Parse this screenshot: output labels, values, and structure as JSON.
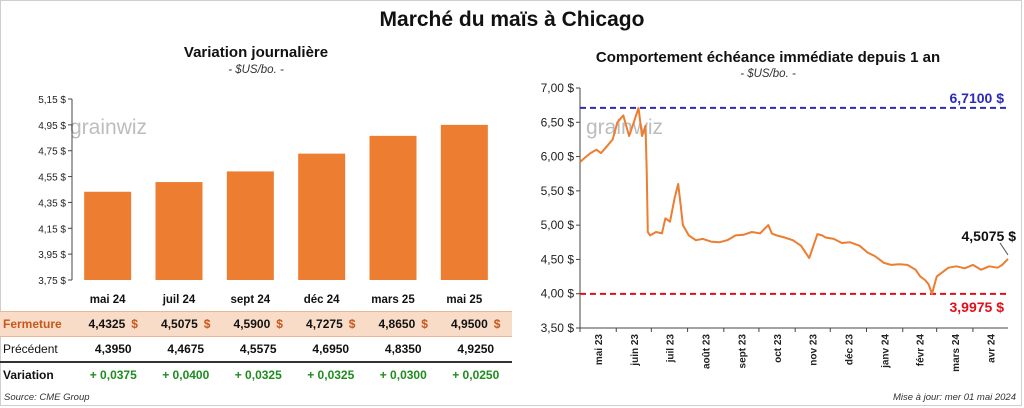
{
  "title": "Marché du maïs à Chicago",
  "watermark": "grainwiz",
  "source": "Source: CME Group",
  "updated": "Mise à jour: mer 01 mai 2024",
  "colors": {
    "bar": "#ed7d31",
    "line": "#ed7d31",
    "high": "#2b2bb8",
    "low": "#e0101a",
    "gain": "#1e8c1e",
    "closeRow": "#f9dcc8"
  },
  "table": {
    "row_labels": [
      "Fermeture",
      "Précédent",
      "Variation"
    ],
    "close": [
      "4,4325",
      "4,5075",
      "4,5900",
      "4,7275",
      "4,8650",
      "4,9500"
    ],
    "currency": "$",
    "previous": [
      "4,3950",
      "4,4675",
      "4,5575",
      "4,6950",
      "4,8350",
      "4,9250"
    ],
    "change": [
      "+ 0,0375",
      "+ 0,0400",
      "+ 0,0325",
      "+ 0,0325",
      "+ 0,0300",
      "+ 0,0250"
    ]
  },
  "chart_data": [
    {
      "type": "bar",
      "title": "Variation journalière",
      "subtitle": "- $US/bo. -",
      "categories": [
        "mai 24",
        "juil 24",
        "sept 24",
        "déc 24",
        "mars 25",
        "mai 25"
      ],
      "values": [
        4.4325,
        4.5075,
        4.59,
        4.7275,
        4.865,
        4.95
      ],
      "ylim": [
        3.75,
        5.15
      ],
      "yticks": [
        "3,75 $",
        "3,95 $",
        "4,15 $",
        "4,35 $",
        "4,55 $",
        "4,75 $",
        "4,95 $",
        "5,15 $"
      ],
      "grid": false
    },
    {
      "type": "line",
      "title": "Comportement échéance immédiate depuis 1 an",
      "subtitle": "- $US/bo. -",
      "ylim": [
        3.5,
        7.0
      ],
      "yticks": [
        "3,50 $",
        "4,00 $",
        "4,50 $",
        "5,00 $",
        "5,50 $",
        "6,00 $",
        "6,50 $",
        "7,00 $"
      ],
      "xticks": [
        "mai 23",
        "juin 23",
        "juil 23",
        "août 23",
        "sept 23",
        "oct 23",
        "nov 23",
        "déc 23",
        "janv 24",
        "févr 24",
        "mars 24",
        "avr 24"
      ],
      "x": [
        "2023-05-01",
        "2023-05-05",
        "2023-05-10",
        "2023-05-15",
        "2023-05-19",
        "2023-05-24",
        "2023-05-29",
        "2023-06-02",
        "2023-06-07",
        "2023-06-12",
        "2023-06-16",
        "2023-06-20",
        "2023-06-23",
        "2023-06-26",
        "2023-06-27",
        "2023-06-28",
        "2023-06-30",
        "2023-07-05",
        "2023-07-10",
        "2023-07-13",
        "2023-07-17",
        "2023-07-21",
        "2023-07-24",
        "2023-07-26",
        "2023-07-28",
        "2023-08-02",
        "2023-08-08",
        "2023-08-14",
        "2023-08-21",
        "2023-08-28",
        "2023-09-04",
        "2023-09-11",
        "2023-09-18",
        "2023-09-25",
        "2023-10-02",
        "2023-10-09",
        "2023-10-12",
        "2023-10-16",
        "2023-10-23",
        "2023-10-30",
        "2023-11-06",
        "2023-11-13",
        "2023-11-20",
        "2023-11-24",
        "2023-11-27",
        "2023-12-04",
        "2023-12-11",
        "2023-12-18",
        "2023-12-26",
        "2024-01-02",
        "2024-01-08",
        "2024-01-12",
        "2024-01-16",
        "2024-01-22",
        "2024-01-29",
        "2024-02-05",
        "2024-02-12",
        "2024-02-16",
        "2024-02-20",
        "2024-02-23",
        "2024-02-26",
        "2024-03-01",
        "2024-03-05",
        "2024-03-11",
        "2024-03-18",
        "2024-03-25",
        "2024-04-01",
        "2024-04-08",
        "2024-04-15",
        "2024-04-22",
        "2024-04-26",
        "2024-05-01"
      ],
      "y": [
        5.92,
        5.98,
        6.05,
        6.1,
        6.05,
        6.15,
        6.25,
        6.5,
        6.6,
        6.3,
        6.5,
        6.71,
        6.3,
        6.45,
        5.8,
        4.9,
        4.85,
        4.9,
        4.88,
        5.1,
        5.05,
        5.4,
        5.6,
        5.3,
        5.0,
        4.85,
        4.78,
        4.8,
        4.76,
        4.75,
        4.78,
        4.85,
        4.86,
        4.9,
        4.88,
        5.0,
        4.88,
        4.85,
        4.82,
        4.78,
        4.7,
        4.52,
        4.87,
        4.85,
        4.82,
        4.8,
        4.74,
        4.75,
        4.7,
        4.6,
        4.55,
        4.5,
        4.45,
        4.42,
        4.43,
        4.42,
        4.35,
        4.25,
        4.2,
        4.14,
        4.0,
        4.25,
        4.3,
        4.38,
        4.4,
        4.37,
        4.42,
        4.35,
        4.4,
        4.38,
        4.42,
        4.5075
      ],
      "high": {
        "value": 6.71,
        "label": "6,7100 $"
      },
      "low": {
        "value": 3.9975,
        "label": "3,9975 $"
      },
      "last": {
        "value": 4.5075,
        "label": "4,5075 $"
      },
      "grid": false
    }
  ]
}
